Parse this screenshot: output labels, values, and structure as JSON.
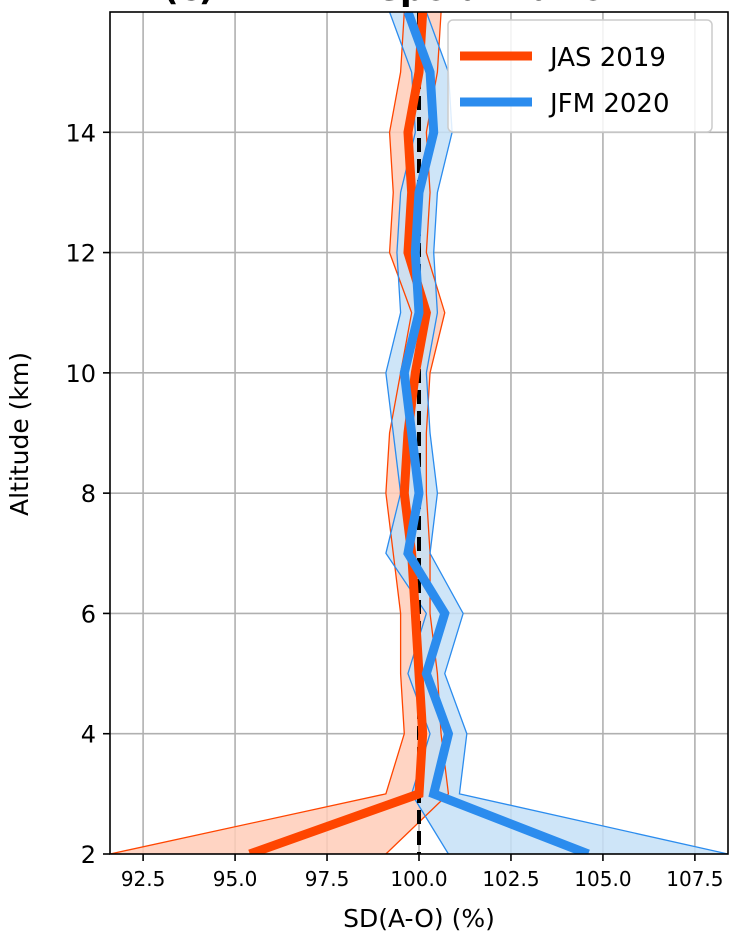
{
  "chart_data": {
    "type": "line",
    "title": "(c) FM-B: Depolarization",
    "xlabel": "SD(A-O) (%)",
    "ylabel": "Altitude (km)",
    "xlim": [
      91.6,
      108.4
    ],
    "ylim": [
      2,
      16
    ],
    "xticks": [
      "92.5",
      "95.0",
      "97.5",
      "100.0",
      "102.5",
      "105.0",
      "107.5"
    ],
    "xtick_values": [
      92.5,
      95.0,
      97.5,
      100.0,
      102.5,
      105.0,
      107.5
    ],
    "yticks": [
      "2",
      "4",
      "6",
      "8",
      "10",
      "12",
      "14"
    ],
    "ytick_values": [
      2,
      4,
      6,
      8,
      10,
      12,
      14
    ],
    "grid": true,
    "legend_position": "top-right",
    "reference_line": {
      "x": 100,
      "style": "dashed",
      "color": "#000000"
    },
    "series": [
      {
        "name": "JAS 2019",
        "color": "#ff4500",
        "band_fill": "#ffcdb8",
        "y": [
          2,
          3,
          4,
          5,
          6,
          7,
          8,
          9,
          10,
          11,
          12,
          13,
          14,
          15,
          16
        ],
        "x": [
          95.4,
          100.0,
          100.1,
          100.0,
          99.9,
          99.8,
          99.6,
          99.7,
          99.9,
          100.2,
          99.7,
          99.8,
          99.7,
          100.0,
          100.1
        ],
        "lower": [
          91.6,
          99.1,
          99.6,
          99.5,
          99.5,
          99.3,
          99.1,
          99.2,
          99.5,
          99.8,
          99.2,
          99.3,
          99.2,
          99.5,
          99.6
        ],
        "upper": [
          99.1,
          100.8,
          100.6,
          100.5,
          100.3,
          100.3,
          100.2,
          100.2,
          100.3,
          100.7,
          100.2,
          100.3,
          100.2,
          100.5,
          100.6
        ]
      },
      {
        "name": "JFM 2020",
        "color": "#2b8cee",
        "band_fill": "#c6e0f7",
        "y": [
          2,
          3,
          4,
          5,
          6,
          7,
          8,
          9,
          10,
          11,
          12,
          13,
          14,
          15,
          16
        ],
        "x": [
          104.6,
          100.4,
          100.8,
          100.2,
          100.7,
          99.7,
          100.0,
          99.8,
          99.6,
          100.0,
          99.9,
          100.0,
          100.4,
          100.3,
          99.7
        ],
        "lower": [
          100.8,
          99.8,
          100.3,
          99.7,
          100.2,
          99.1,
          99.5,
          99.3,
          99.1,
          99.5,
          99.4,
          99.5,
          99.9,
          99.8,
          99.2
        ],
        "upper": [
          108.4,
          101.1,
          101.3,
          100.7,
          101.2,
          100.3,
          100.5,
          100.3,
          100.2,
          100.5,
          100.4,
          100.5,
          100.9,
          100.8,
          100.2
        ]
      }
    ]
  }
}
